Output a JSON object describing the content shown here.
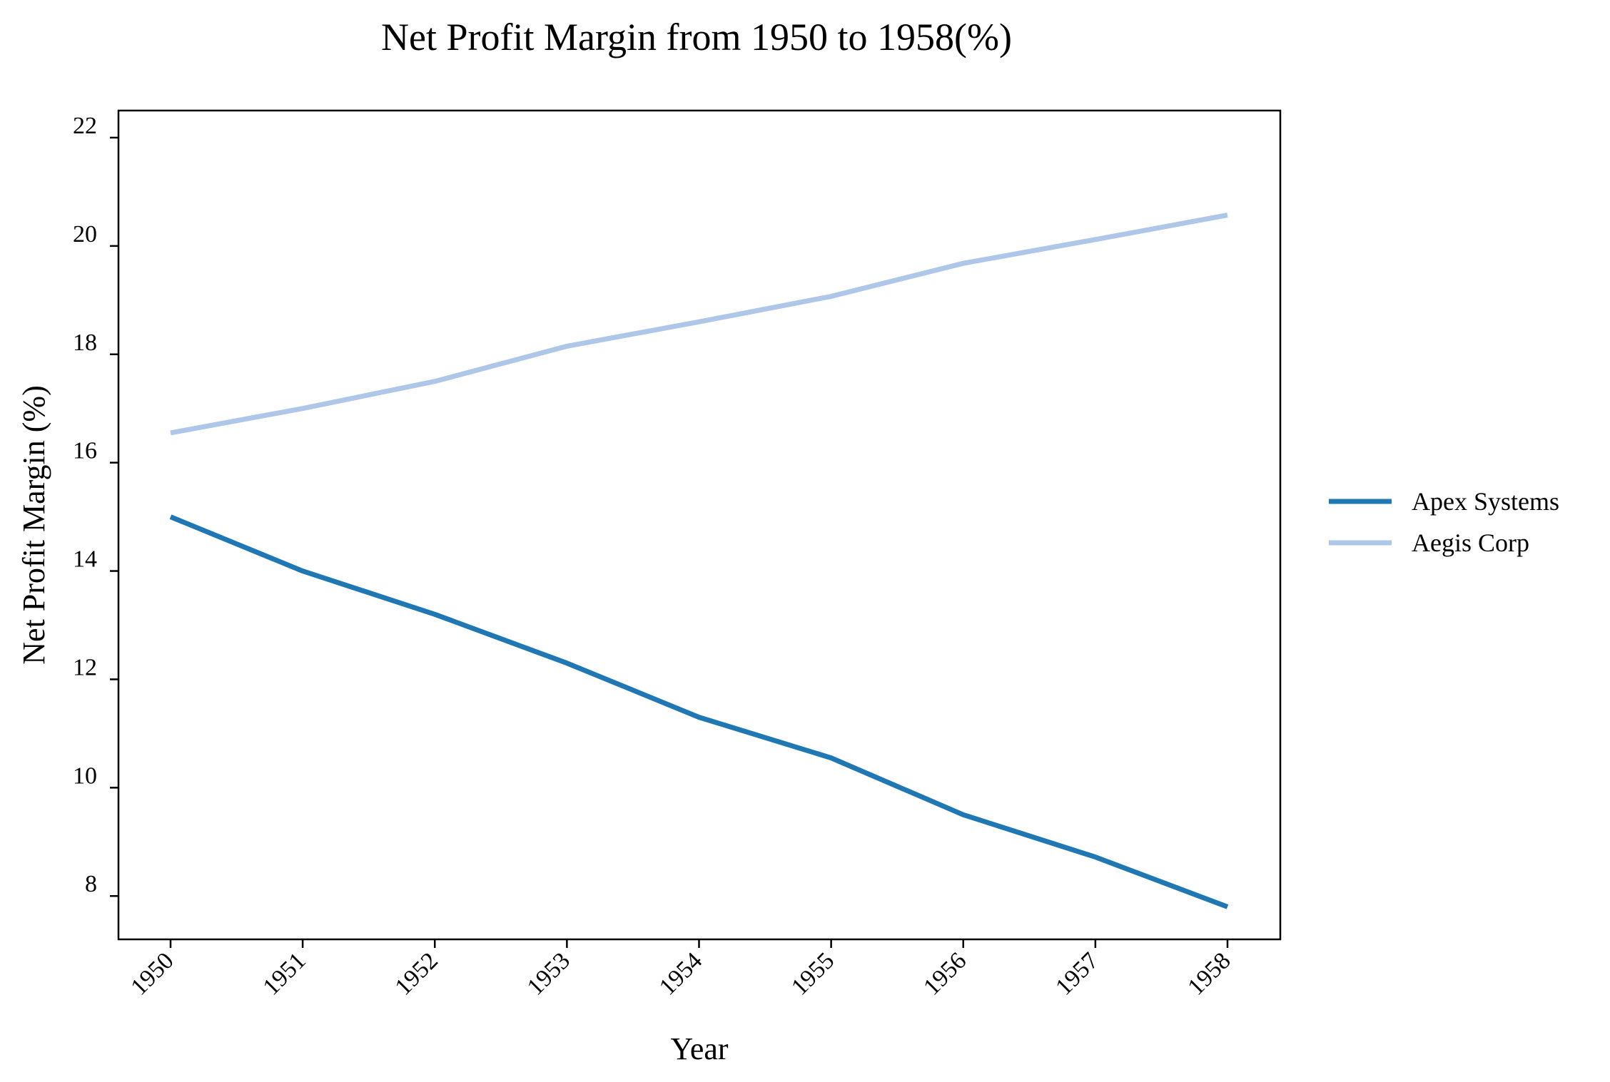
{
  "chart_data": {
    "type": "line",
    "title": "Net Profit Margin from 1950 to 1958(%)",
    "xlabel": "Year",
    "ylabel": "Net Profit Margin (%)",
    "x": [
      "1950",
      "1951",
      "1952",
      "1953",
      "1954",
      "1955",
      "1956",
      "1957",
      "1958"
    ],
    "yticks": [
      8,
      10,
      12,
      14,
      16,
      18,
      20,
      22
    ],
    "ylim": [
      7.2,
      22.5
    ],
    "grid": false,
    "legend_position": "right",
    "series": [
      {
        "name": "Apex Systems",
        "color": "#1f77b4",
        "values": [
          15.0,
          14.0,
          13.2,
          12.3,
          11.3,
          10.55,
          9.5,
          8.72,
          7.8
        ]
      },
      {
        "name": "Aegis Corp",
        "color": "#aec7e8",
        "values": [
          16.55,
          17.0,
          17.5,
          18.15,
          18.6,
          19.07,
          19.68,
          20.12,
          20.57
        ]
      }
    ]
  }
}
